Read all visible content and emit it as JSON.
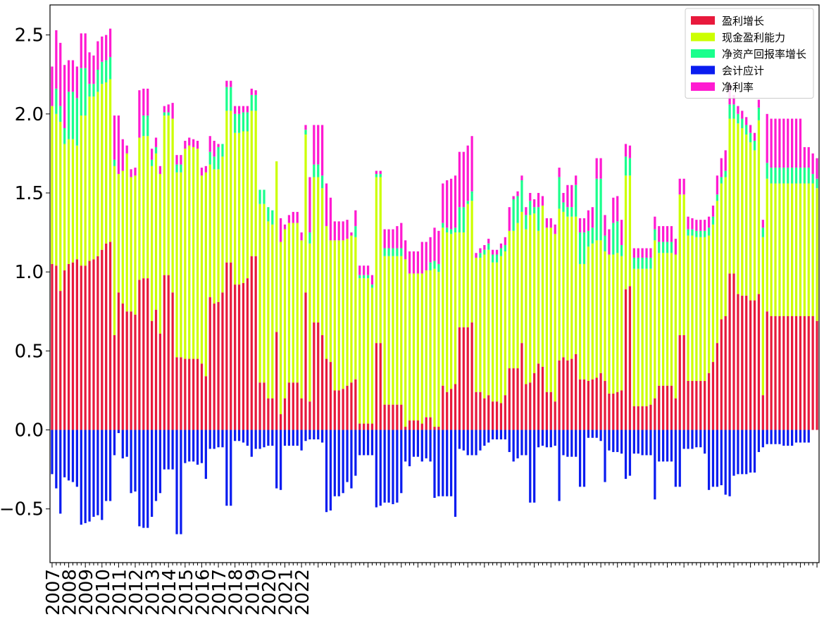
{
  "chart_data": {
    "type": "bar",
    "stacked": true,
    "title": "",
    "xlabel": "",
    "ylabel": "",
    "ylim": [
      -0.84,
      2.69
    ],
    "grid": false,
    "legend_position": "top-right",
    "year_labels": [
      "2007",
      "2008",
      "2009",
      "2010",
      "2011",
      "2012",
      "2013",
      "2014",
      "2015",
      "2016",
      "2017",
      "2018",
      "2019",
      "2020",
      "2021",
      "2022"
    ],
    "y_ticks": [
      {
        "value": -0.5,
        "label": "−0.5"
      },
      {
        "value": 0.0,
        "label": "0.0"
      },
      {
        "value": 0.5,
        "label": "0.5"
      },
      {
        "value": 1.0,
        "label": "1.0"
      },
      {
        "value": 1.5,
        "label": "1.5"
      },
      {
        "value": 2.0,
        "label": "2.0"
      },
      {
        "value": 2.5,
        "label": "2.5"
      }
    ],
    "series": [
      {
        "name": "盈利增长",
        "color": "#e8193c",
        "values": [
          1.05,
          1.04,
          0.88,
          1.01,
          1.05,
          1.06,
          1.08,
          1.04,
          1.04,
          1.07,
          1.08,
          1.1,
          1.14,
          1.18,
          1.19,
          0.6,
          0.87,
          0.8,
          0.75,
          0.75,
          0.73,
          0.95,
          0.96,
          0.96,
          0.69,
          0.76,
          0.61,
          0.98,
          0.98,
          0.87,
          0.46,
          0.46,
          0.45,
          0.45,
          0.45,
          0.45,
          0.42,
          0.34,
          0.84,
          0.8,
          0.81,
          0.87,
          1.06,
          1.06,
          0.92,
          0.92,
          0.93,
          0.96,
          1.1,
          1.1,
          0.3,
          0.3,
          0.2,
          0.2,
          0.62,
          0.1,
          0.2,
          0.3,
          0.3,
          0.3,
          0.2,
          0.87,
          0.18,
          0.68,
          0.68,
          0.6,
          0.45,
          0.43,
          0.25,
          0.25,
          0.26,
          0.28,
          0.3,
          0.32,
          0.04,
          0.04,
          0.04,
          0.04,
          0.55,
          0.55,
          0.16,
          0.16,
          0.16,
          0.16,
          0.16,
          0.02,
          0.06,
          0.06,
          0.06,
          0.04,
          0.08,
          0.08,
          0.02,
          0.02,
          0.28,
          0.24,
          0.26,
          0.29,
          0.65,
          0.65,
          0.65,
          0.68,
          0.24,
          0.24,
          0.2,
          0.22,
          0.18,
          0.18,
          0.17,
          0.22,
          0.39,
          0.39,
          0.39,
          0.55,
          0.29,
          0.3,
          0.36,
          0.42,
          0.4,
          0.24,
          0.24,
          0.18,
          0.44,
          0.46,
          0.44,
          0.45,
          0.48,
          0.32,
          0.32,
          0.31,
          0.32,
          0.33,
          0.36,
          0.31,
          0.23,
          0.23,
          0.24,
          0.25,
          0.89,
          0.91,
          0.15,
          0.15,
          0.15,
          0.15,
          0.16,
          0.2,
          0.28,
          0.28,
          0.28,
          0.28,
          0.2,
          0.6,
          0.6,
          0.31,
          0.31,
          0.31,
          0.31,
          0.31,
          0.36,
          0.43,
          0.55,
          0.7,
          0.72,
          0.99,
          0.99,
          0.86,
          0.85,
          0.85,
          0.82,
          0.82,
          0.86,
          0.22,
          0.75,
          0.72,
          0.72,
          0.72,
          0.72,
          0.72,
          0.72,
          0.72,
          0.72,
          0.72,
          0.72,
          0.72,
          0.69
        ]
      },
      {
        "name": "现金盈利能力",
        "color": "#ccff00",
        "values": [
          1.0,
          0.96,
          1.07,
          0.8,
          0.79,
          0.78,
          0.72,
          0.95,
          0.95,
          1.04,
          1.03,
          1.04,
          1.05,
          1.02,
          1.03,
          1.07,
          0.75,
          0.84,
          1.0,
          0.85,
          0.88,
          0.9,
          0.9,
          0.9,
          0.98,
          0.99,
          1.01,
          1.01,
          1.01,
          1.1,
          1.17,
          1.17,
          1.33,
          1.35,
          1.34,
          1.33,
          1.19,
          1.29,
          0.84,
          0.85,
          0.84,
          0.86,
          0.96,
          0.96,
          0.96,
          0.96,
          0.96,
          0.93,
          0.92,
          0.92,
          1.13,
          1.13,
          1.12,
          1.1,
          1.08,
          1.09,
          1.07,
          1.01,
          1.01,
          1.01,
          1.0,
          1.0,
          1.0,
          0.92,
          0.92,
          0.93,
          0.84,
          0.77,
          0.95,
          0.95,
          0.94,
          0.93,
          0.93,
          0.9,
          0.92,
          0.92,
          0.92,
          0.86,
          1.05,
          1.05,
          0.94,
          0.94,
          0.94,
          0.94,
          0.94,
          1.06,
          0.93,
          0.93,
          0.93,
          0.95,
          0.93,
          0.93,
          1.0,
          0.98,
          1.0,
          1.01,
          0.98,
          0.96,
          0.6,
          0.6,
          0.78,
          0.77,
          0.85,
          0.85,
          0.91,
          0.92,
          0.88,
          0.88,
          0.93,
          0.91,
          0.87,
          0.87,
          0.92,
          0.83,
          0.98,
          1.06,
          1.01,
          0.84,
          1.02,
          1.04,
          1.04,
          1.06,
          0.96,
          0.92,
          0.91,
          0.9,
          0.87,
          0.73,
          0.73,
          0.85,
          0.86,
          0.87,
          0.84,
          0.82,
          0.88,
          0.88,
          0.88,
          0.85,
          0.72,
          0.7,
          0.87,
          0.87,
          0.87,
          0.87,
          0.86,
          1.0,
          0.84,
          0.84,
          0.84,
          0.84,
          0.91,
          0.89,
          0.89,
          0.92,
          0.92,
          0.91,
          0.91,
          0.91,
          0.87,
          0.87,
          0.9,
          0.86,
          0.88,
          0.98,
          0.98,
          1.08,
          1.06,
          1.02,
          1.0,
          0.95,
          1.1,
          1.0,
          0.84,
          0.84,
          0.84,
          0.84,
          0.84,
          0.84,
          0.84,
          0.84,
          0.84,
          0.84,
          0.84,
          0.84,
          0.84
        ]
      },
      {
        "name": "净资产回报率增长",
        "color": "#1aff8c",
        "values": [
          0.0,
          0.16,
          0.1,
          0.1,
          0.3,
          0.3,
          0.3,
          0.3,
          0.3,
          0.08,
          0.08,
          0.14,
          0.14,
          0.14,
          0.14,
          0.04,
          0.0,
          0.0,
          0.0,
          0.0,
          0.0,
          0.0,
          0.13,
          0.13,
          0.04,
          0.04,
          0.0,
          0.02,
          0.02,
          0.0,
          0.05,
          0.05,
          0.0,
          0.0,
          0.0,
          0.0,
          0.0,
          0.0,
          0.08,
          0.08,
          0.14,
          0.08,
          0.15,
          0.15,
          0.12,
          0.12,
          0.12,
          0.12,
          0.1,
          0.1,
          0.09,
          0.09,
          0.09,
          0.09,
          0.0,
          0.0,
          0.0,
          0.0,
          0.0,
          0.0,
          0.0,
          0.03,
          0.07,
          0.08,
          0.08,
          0.08,
          0.0,
          0.0,
          0.0,
          0.0,
          0.0,
          0.0,
          0.0,
          0.07,
          0.02,
          0.02,
          0.02,
          0.02,
          0.02,
          0.02,
          0.05,
          0.05,
          0.05,
          0.05,
          0.05,
          0.0,
          0.0,
          0.0,
          0.0,
          0.0,
          0.0,
          0.05,
          0.05,
          0.05,
          0.03,
          0.03,
          0.03,
          0.03,
          0.16,
          0.16,
          0.02,
          0.06,
          0.0,
          0.03,
          0.03,
          0.04,
          0.05,
          0.05,
          0.05,
          0.04,
          0.0,
          0.2,
          0.17,
          0.2,
          0.09,
          0.09,
          0.04,
          0.15,
          0.0,
          0.0,
          0.0,
          0.0,
          0.2,
          0.06,
          0.06,
          0.06,
          0.2,
          0.2,
          0.2,
          0.1,
          0.1,
          0.39,
          0.39,
          0.1,
          0.0,
          0.2,
          0.2,
          0.07,
          0.12,
          0.11,
          0.07,
          0.07,
          0.07,
          0.07,
          0.07,
          0.07,
          0.07,
          0.07,
          0.07,
          0.07,
          0.0,
          0.0,
          0.0,
          0.04,
          0.04,
          0.04,
          0.04,
          0.04,
          0.05,
          0.05,
          0.04,
          0.04,
          0.04,
          0.09,
          0.09,
          0.06,
          0.06,
          0.06,
          0.06,
          0.06,
          0.08,
          0.06,
          0.1,
          0.1,
          0.1,
          0.1,
          0.1,
          0.1,
          0.1,
          0.1,
          0.1,
          0.1,
          0.1,
          0.06,
          0.06
        ]
      },
      {
        "name": "会计应计",
        "color": "#0a1cf0",
        "values": [
          -0.28,
          -0.37,
          -0.53,
          -0.3,
          -0.32,
          -0.33,
          -0.36,
          -0.6,
          -0.59,
          -0.58,
          -0.55,
          -0.54,
          -0.57,
          -0.45,
          -0.45,
          -0.16,
          -0.02,
          -0.18,
          -0.17,
          -0.4,
          -0.39,
          -0.61,
          -0.62,
          -0.62,
          -0.55,
          -0.45,
          -0.4,
          -0.25,
          -0.25,
          -0.25,
          -0.66,
          -0.66,
          -0.21,
          -0.2,
          -0.2,
          -0.22,
          -0.21,
          -0.31,
          -0.12,
          -0.12,
          -0.11,
          -0.11,
          -0.48,
          -0.48,
          -0.07,
          -0.07,
          -0.08,
          -0.1,
          -0.17,
          -0.12,
          -0.12,
          -0.11,
          -0.1,
          -0.1,
          -0.37,
          -0.38,
          -0.1,
          -0.1,
          -0.1,
          -0.1,
          -0.13,
          -0.07,
          -0.06,
          -0.06,
          -0.06,
          -0.08,
          -0.52,
          -0.51,
          -0.42,
          -0.42,
          -0.4,
          -0.33,
          -0.37,
          -0.29,
          -0.16,
          -0.16,
          -0.16,
          -0.16,
          -0.49,
          -0.48,
          -0.46,
          -0.46,
          -0.47,
          -0.46,
          -0.4,
          -0.2,
          -0.23,
          -0.17,
          -0.17,
          -0.2,
          -0.18,
          -0.2,
          -0.43,
          -0.42,
          -0.42,
          -0.42,
          -0.42,
          -0.55,
          -0.12,
          -0.13,
          -0.16,
          -0.16,
          -0.16,
          -0.13,
          -0.1,
          -0.08,
          -0.06,
          -0.06,
          -0.06,
          -0.06,
          -0.14,
          -0.2,
          -0.18,
          -0.16,
          -0.16,
          -0.46,
          -0.46,
          -0.11,
          -0.1,
          -0.11,
          -0.11,
          -0.1,
          -0.45,
          -0.16,
          -0.17,
          -0.17,
          -0.17,
          -0.36,
          -0.36,
          -0.05,
          -0.05,
          -0.05,
          -0.07,
          -0.33,
          -0.13,
          -0.14,
          -0.14,
          -0.15,
          -0.31,
          -0.29,
          -0.15,
          -0.15,
          -0.16,
          -0.16,
          -0.16,
          -0.44,
          -0.2,
          -0.2,
          -0.2,
          -0.2,
          -0.36,
          -0.36,
          -0.12,
          -0.12,
          -0.12,
          -0.11,
          -0.11,
          -0.15,
          -0.38,
          -0.36,
          -0.36,
          -0.35,
          -0.41,
          -0.42,
          -0.29,
          -0.28,
          -0.28,
          -0.28,
          -0.27,
          -0.27,
          -0.14,
          -0.11,
          -0.09,
          -0.09,
          -0.09,
          -0.09,
          -0.1,
          -0.1,
          -0.1,
          -0.08,
          -0.08,
          -0.08,
          -0.08
        ]
      },
      {
        "name": "净利率",
        "color": "#ff1ad1",
        "values": [
          0.25,
          0.37,
          0.4,
          0.4,
          0.2,
          0.2,
          0.2,
          0.22,
          0.22,
          0.2,
          0.18,
          0.18,
          0.16,
          0.16,
          0.18,
          0.28,
          0.37,
          0.2,
          0.05,
          0.05,
          0.05,
          0.3,
          0.17,
          0.17,
          0.07,
          0.06,
          0.05,
          0.04,
          0.05,
          0.1,
          0.06,
          0.06,
          0.05,
          0.05,
          0.05,
          0.05,
          0.05,
          0.04,
          0.1,
          0.1,
          0.02,
          0.0,
          0.04,
          0.04,
          0.05,
          0.05,
          0.04,
          0.04,
          0.04,
          0.03,
          0.0,
          0.0,
          0.0,
          0.0,
          0.0,
          0.15,
          0.03,
          0.05,
          0.07,
          0.07,
          0.05,
          0.03,
          0.35,
          0.25,
          0.25,
          0.32,
          0.27,
          0.27,
          0.12,
          0.12,
          0.12,
          0.12,
          0.02,
          0.1,
          0.06,
          0.06,
          0.06,
          0.06,
          0.02,
          0.02,
          0.12,
          0.12,
          0.12,
          0.14,
          0.16,
          0.12,
          0.14,
          0.14,
          0.14,
          0.2,
          0.18,
          0.16,
          0.21,
          0.21,
          0.25,
          0.3,
          0.32,
          0.33,
          0.35,
          0.35,
          0.35,
          0.35,
          0.03,
          0.03,
          0.03,
          0.03,
          0.03,
          0.03,
          0.03,
          0.05,
          0.15,
          0.02,
          0.03,
          0.03,
          0.05,
          0.05,
          0.05,
          0.09,
          0.06,
          0.06,
          0.06,
          0.06,
          0.06,
          0.06,
          0.14,
          0.14,
          0.06,
          0.09,
          0.09,
          0.13,
          0.13,
          0.13,
          0.13,
          0.13,
          0.16,
          0.16,
          0.16,
          0.16,
          0.08,
          0.08,
          0.06,
          0.06,
          0.06,
          0.06,
          0.06,
          0.08,
          0.1,
          0.1,
          0.1,
          0.1,
          0.1,
          0.1,
          0.1,
          0.08,
          0.07,
          0.07,
          0.07,
          0.07,
          0.07,
          0.07,
          0.12,
          0.12,
          0.13,
          0.13,
          0.06,
          0.05,
          0.05,
          0.05,
          0.05,
          0.05,
          0.05,
          0.05,
          0.31,
          0.31,
          0.31,
          0.31,
          0.31,
          0.31,
          0.31,
          0.31,
          0.31,
          0.13,
          0.13,
          0.13,
          0.13
        ]
      }
    ]
  }
}
